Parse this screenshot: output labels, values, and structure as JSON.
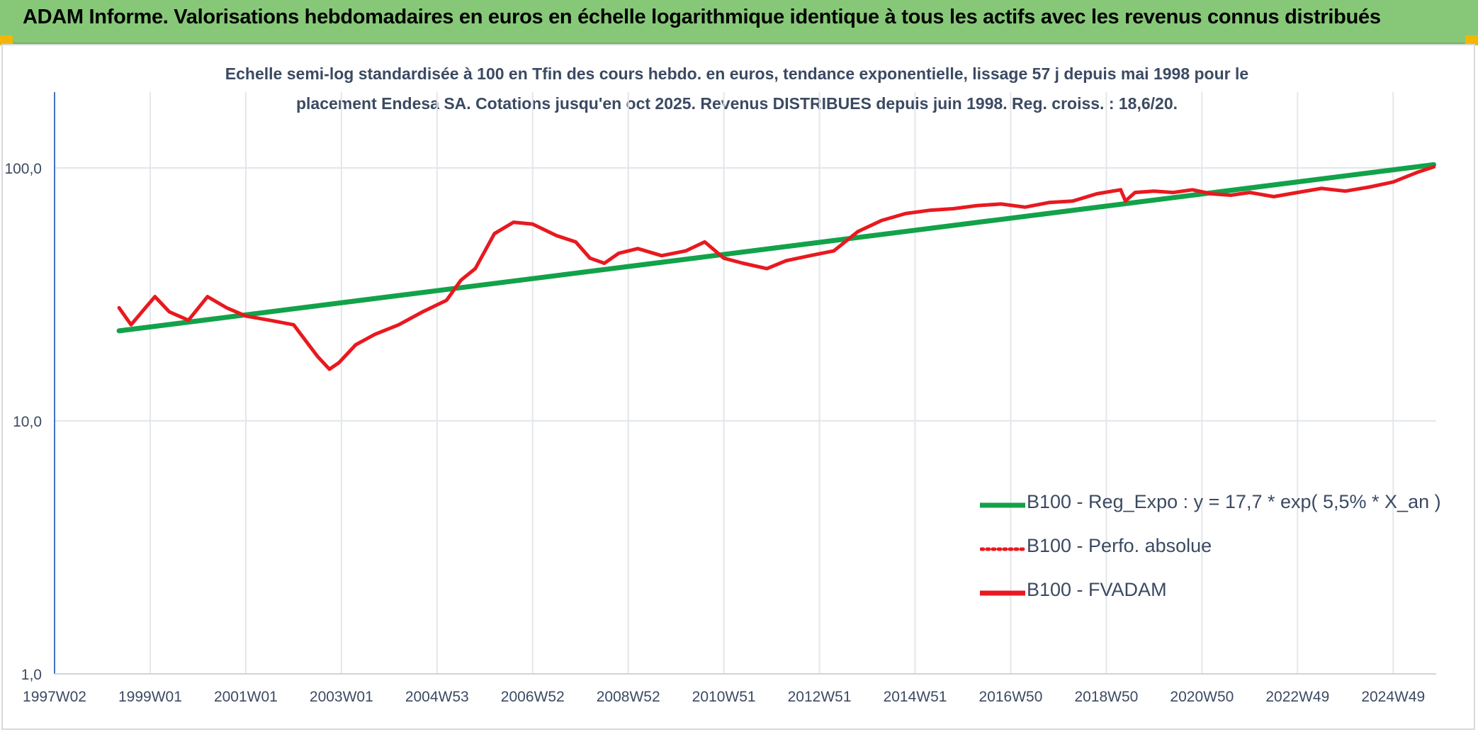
{
  "header": {
    "title": "ADAM Informe. Valorisations hebdomadaires en euros en échelle logarithmique identique à tous les actifs avec les revenus connus distribués"
  },
  "colors": {
    "banner": "#86c878",
    "trend": "#12a24a",
    "perf": "#e8191f",
    "fvadam": "#e8191f",
    "text": "#3b4a62",
    "accent_corner": "#f2b705"
  },
  "chart_data": {
    "type": "line",
    "title_line1": "Echelle semi-log standardisée à 100 en Tfin des cours hebdo. en euros, tendance exponentielle, lissage 57 j depuis mai 1998 pour le",
    "title_line2": "placement Endesa SA. Cotations jusqu'en oct 2025. Revenus DISTRIBUES depuis juin 1998. Reg. croiss. : 18,6/20.",
    "y_scale": "log",
    "ylim": [
      1,
      200
    ],
    "y_ticks": [
      1,
      10,
      100
    ],
    "y_tick_labels": [
      "1,0",
      "10,0",
      "100,0"
    ],
    "xlim": [
      1997.0,
      2025.9
    ],
    "x_tick_labels": [
      "1997W02",
      "1999W01",
      "2001W01",
      "2003W01",
      "2004W53",
      "2006W52",
      "2008W52",
      "2010W51",
      "2012W51",
      "2014W51",
      "2016W50",
      "2018W50",
      "2020W50",
      "2022W49",
      "2024W49"
    ],
    "x_tick_positions": [
      1997.0,
      1999.0,
      2001.0,
      2003.0,
      2005.0,
      2007.0,
      2009.0,
      2011.0,
      2013.0,
      2015.0,
      2017.0,
      2019.0,
      2021.0,
      2023.0,
      2025.0
    ],
    "grid": true,
    "legend_position": "bottom-right",
    "series": [
      {
        "name": "B100 - Reg_Expo : y = 17,7 * exp( 5,5% *  X_an )",
        "style": "solid",
        "x": [
          1998.35,
          2025.85
        ],
        "y": [
          22.7,
          103.0
        ]
      },
      {
        "name": "B100 - Perfo. absolue",
        "style": "dotted",
        "x": [
          1998.35,
          1998.6,
          1998.9,
          1999.1,
          1999.4,
          1999.8,
          2000.2,
          2000.6,
          2001.0,
          2001.5,
          2002.0,
          2002.5,
          2002.75,
          2002.95,
          2003.3,
          2003.7,
          2004.2,
          2004.7,
          2005.2,
          2005.5,
          2005.8,
          2006.2,
          2006.6,
          2007.0,
          2007.5,
          2007.9,
          2008.2,
          2008.5,
          2008.8,
          2009.2,
          2009.7,
          2010.2,
          2010.6,
          2011.0,
          2011.4,
          2011.9,
          2012.3,
          2012.8,
          2013.3,
          2013.8,
          2014.3,
          2014.8,
          2015.3,
          2015.8,
          2016.3,
          2016.8,
          2017.3,
          2017.8,
          2018.3,
          2018.8,
          2019.3,
          2019.4,
          2019.6,
          2020.0,
          2020.4,
          2020.8,
          2021.2,
          2021.6,
          2022.0,
          2022.5,
          2023.0,
          2023.5,
          2024.0,
          2024.5,
          2025.0,
          2025.5,
          2025.85
        ],
        "y": [
          28,
          24,
          28,
          31,
          27,
          25,
          31,
          28,
          26,
          25,
          24,
          18,
          16,
          17,
          20,
          22,
          24,
          27,
          30,
          36,
          40,
          55,
          61,
          60,
          54,
          51,
          44,
          42,
          46,
          48,
          45,
          47,
          51,
          44,
          42,
          40,
          43,
          45,
          47,
          56,
          62,
          66,
          68,
          69,
          71,
          72,
          70,
          73,
          74,
          79,
          82,
          74,
          80,
          81,
          80,
          82,
          79,
          78,
          80,
          77,
          80,
          83,
          81,
          84,
          88,
          96,
          101
        ]
      },
      {
        "name": "B100 - FVADAM",
        "style": "solid",
        "x": [
          1998.35,
          1998.6,
          1998.9,
          1999.1,
          1999.4,
          1999.8,
          2000.2,
          2000.6,
          2001.0,
          2001.5,
          2002.0,
          2002.5,
          2002.75,
          2002.95,
          2003.3,
          2003.7,
          2004.2,
          2004.7,
          2005.2,
          2005.5,
          2005.8,
          2006.2,
          2006.6,
          2007.0,
          2007.5,
          2007.9,
          2008.2,
          2008.5,
          2008.8,
          2009.2,
          2009.7,
          2010.2,
          2010.6,
          2011.0,
          2011.4,
          2011.9,
          2012.3,
          2012.8,
          2013.3,
          2013.8,
          2014.3,
          2014.8,
          2015.3,
          2015.8,
          2016.3,
          2016.8,
          2017.3,
          2017.8,
          2018.3,
          2018.8,
          2019.3,
          2019.4,
          2019.6,
          2020.0,
          2020.4,
          2020.8,
          2021.2,
          2021.6,
          2022.0,
          2022.5,
          2023.0,
          2023.5,
          2024.0,
          2024.5,
          2025.0,
          2025.5,
          2025.85
        ],
        "y": [
          28,
          24,
          28,
          31,
          27,
          25,
          31,
          28,
          26,
          25,
          24,
          18,
          16,
          17,
          20,
          22,
          24,
          27,
          30,
          36,
          40,
          55,
          61,
          60,
          54,
          51,
          44,
          42,
          46,
          48,
          45,
          47,
          51,
          44,
          42,
          40,
          43,
          45,
          47,
          56,
          62,
          66,
          68,
          69,
          71,
          72,
          70,
          73,
          74,
          79,
          82,
          74,
          80,
          81,
          80,
          82,
          79,
          78,
          80,
          77,
          80,
          83,
          81,
          84,
          88,
          96,
          101
        ]
      }
    ]
  }
}
